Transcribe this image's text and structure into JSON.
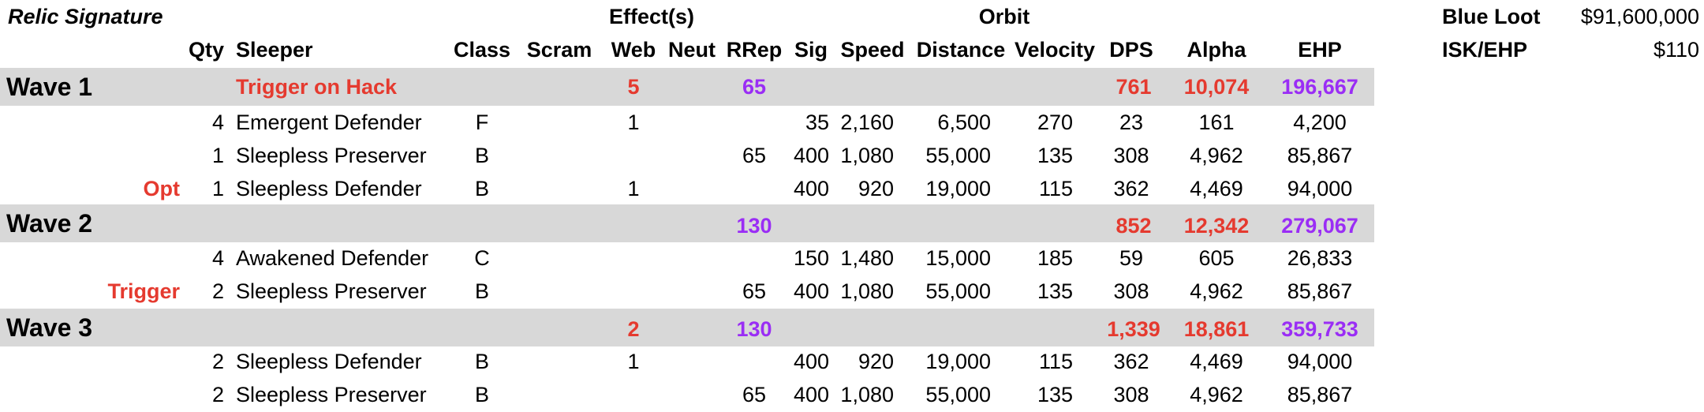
{
  "title": "Relic Signature",
  "group_headers": {
    "effects": "Effect(s)",
    "orbit": "Orbit"
  },
  "headers": {
    "qty": "Qty",
    "sleeper": "Sleeper",
    "class": "Class",
    "scram": "Scram",
    "web": "Web",
    "neut": "Neut",
    "rrep": "RRep",
    "sig": "Sig",
    "speed": "Speed",
    "distance": "Distance",
    "velocity": "Velocity",
    "dps": "DPS",
    "alpha": "Alpha",
    "ehp": "EHP"
  },
  "summary": {
    "blue_loot_label": "Blue Loot",
    "blue_loot_value": "$91,600,000",
    "isk_ehp_label": "ISK/EHP",
    "isk_ehp_value": "$110"
  },
  "waves": [
    {
      "label": "Wave 1",
      "note": "Trigger on Hack",
      "web": "5",
      "rrep": "65",
      "dps": "761",
      "alpha": "10,074",
      "ehp": "196,667",
      "rows": [
        {
          "tag": "",
          "qty": "4",
          "sleeper": "Emergent Defender",
          "class": "F",
          "web": "1",
          "rrep": "",
          "sig": "35",
          "speed": "2,160",
          "distance": "6,500",
          "velocity": "270",
          "dps": "23",
          "alpha": "161",
          "ehp": "4,200"
        },
        {
          "tag": "",
          "qty": "1",
          "sleeper": "Sleepless Preserver",
          "class": "B",
          "web": "",
          "rrep": "65",
          "sig": "400",
          "speed": "1,080",
          "distance": "55,000",
          "velocity": "135",
          "dps": "308",
          "alpha": "4,962",
          "ehp": "85,867"
        },
        {
          "tag": "Opt",
          "qty": "1",
          "sleeper": "Sleepless Defender",
          "class": "B",
          "web": "1",
          "rrep": "",
          "sig": "400",
          "speed": "920",
          "distance": "19,000",
          "velocity": "115",
          "dps": "362",
          "alpha": "4,469",
          "ehp": "94,000"
        }
      ]
    },
    {
      "label": "Wave 2",
      "note": "",
      "web": "",
      "rrep": "130",
      "dps": "852",
      "alpha": "12,342",
      "ehp": "279,067",
      "rows": [
        {
          "tag": "",
          "qty": "4",
          "sleeper": "Awakened Defender",
          "class": "C",
          "web": "",
          "rrep": "",
          "sig": "150",
          "speed": "1,480",
          "distance": "15,000",
          "velocity": "185",
          "dps": "59",
          "alpha": "605",
          "ehp": "26,833"
        },
        {
          "tag": "Trigger",
          "qty": "2",
          "sleeper": "Sleepless Preserver",
          "class": "B",
          "web": "",
          "rrep": "65",
          "sig": "400",
          "speed": "1,080",
          "distance": "55,000",
          "velocity": "135",
          "dps": "308",
          "alpha": "4,962",
          "ehp": "85,867"
        }
      ]
    },
    {
      "label": "Wave 3",
      "note": "",
      "web": "2",
      "rrep": "130",
      "dps": "1,339",
      "alpha": "18,861",
      "ehp": "359,733",
      "rows": [
        {
          "tag": "",
          "qty": "2",
          "sleeper": "Sleepless Defender",
          "class": "B",
          "web": "1",
          "rrep": "",
          "sig": "400",
          "speed": "920",
          "distance": "19,000",
          "velocity": "115",
          "dps": "362",
          "alpha": "4,469",
          "ehp": "94,000"
        },
        {
          "tag": "",
          "qty": "2",
          "sleeper": "Sleepless Preserver",
          "class": "B",
          "web": "",
          "rrep": "65",
          "sig": "400",
          "speed": "1,080",
          "distance": "55,000",
          "velocity": "135",
          "dps": "308",
          "alpha": "4,962",
          "ehp": "85,867"
        }
      ]
    }
  ],
  "colors": {
    "red": "#e53a2f",
    "purple": "#9a2df5",
    "band": "#d8d8d8"
  }
}
